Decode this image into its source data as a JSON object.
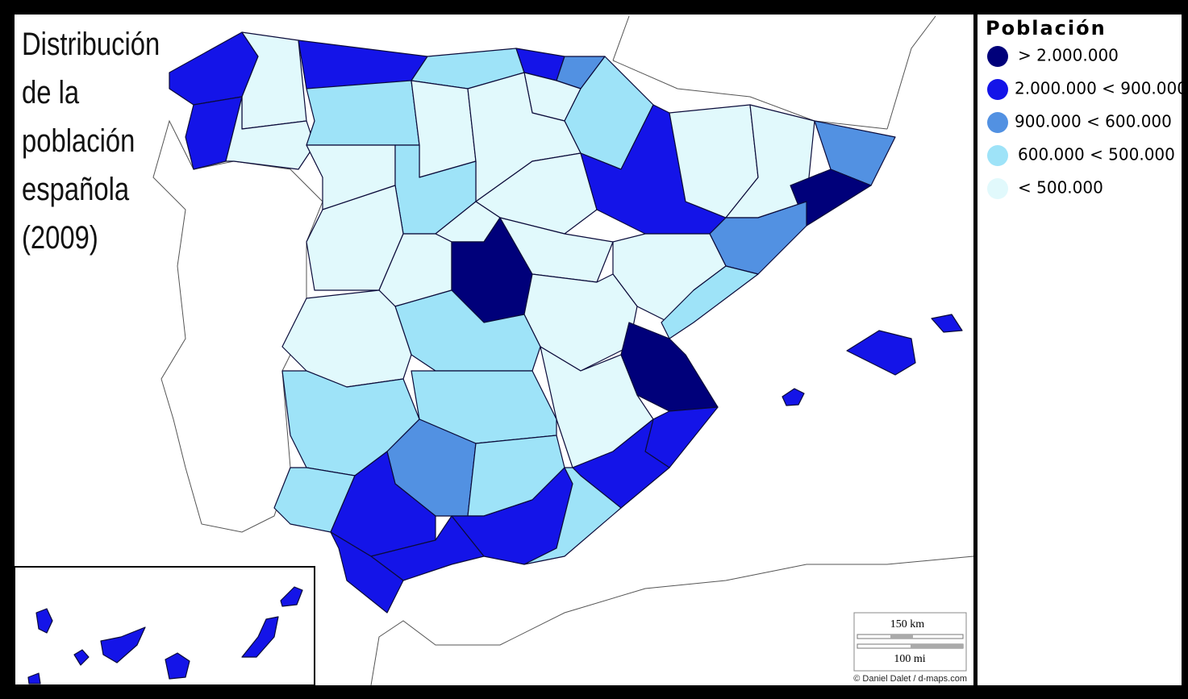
{
  "title": [
    "Distribución",
    "de la",
    "población",
    "española",
    "(2009)"
  ],
  "legend": {
    "title": "Población",
    "items": [
      {
        "label": "> 2.000.000",
        "color": "#00007a"
      },
      {
        "label": "2.000.000 < 900.000",
        "color": "#1414e8"
      },
      {
        "label": "900.000 < 600.000",
        "color": "#5291e2"
      },
      {
        "label": "600.000 < 500.000",
        "color": "#9ee3f8"
      },
      {
        "label": "< 500.000",
        "color": "#e1f9fc"
      }
    ]
  },
  "scale": {
    "km": "150 km",
    "mi": "100 mi"
  },
  "credit": "© Daniel Dalet / d-maps.com"
}
